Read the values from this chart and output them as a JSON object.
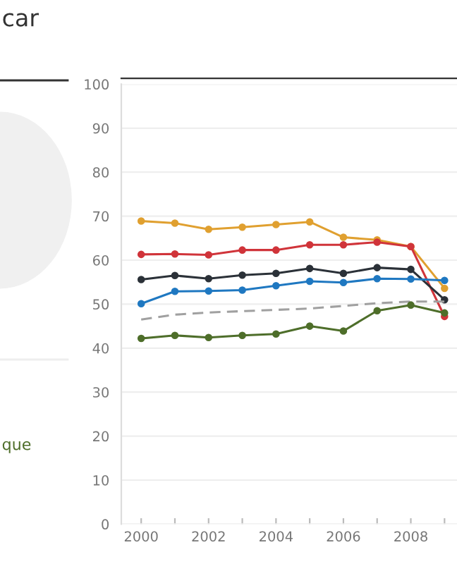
{
  "chart_data": {
    "type": "line",
    "title": "car",
    "x": [
      2000,
      2001,
      2002,
      2003,
      2004,
      2005,
      2006,
      2007,
      2008,
      2009
    ],
    "series": [
      {
        "color": "#e0a030",
        "marker": "circle",
        "values": [
          68.9,
          68.4,
          67.0,
          67.5,
          68.1,
          68.7,
          65.2,
          64.6,
          63.1,
          53.6
        ]
      },
      {
        "color": "#d0343a",
        "marker": "circle",
        "values": [
          61.3,
          61.4,
          61.2,
          62.3,
          62.3,
          63.5,
          63.5,
          64.1,
          63.1,
          47.2
        ]
      },
      {
        "color": "#2b3138",
        "marker": "circle",
        "values": [
          55.6,
          56.5,
          55.8,
          56.6,
          57.0,
          58.1,
          57.0,
          58.3,
          57.9,
          51.0
        ]
      },
      {
        "color": "#1f78c1",
        "marker": "circle",
        "values": [
          50.1,
          52.9,
          53.0,
          53.2,
          54.2,
          55.2,
          54.9,
          55.8,
          55.7,
          55.4
        ]
      },
      {
        "color": "#a0a0a0",
        "marker": "none",
        "line_style": "dashed",
        "values": [
          46.5,
          47.6,
          48.1,
          48.4,
          48.7,
          49.0,
          49.6,
          50.2,
          50.6,
          50.6
        ]
      },
      {
        "name": "que",
        "color": "#4e6e2a",
        "marker": "circle",
        "values": [
          42.2,
          42.9,
          42.4,
          42.9,
          43.2,
          45.0,
          43.9,
          48.5,
          49.8,
          48.0
        ]
      }
    ],
    "xlim": [
      1999.41,
      2009.37
    ],
    "xticks": [
      2000,
      {
        "value": 2001,
        "label": null
      },
      2002,
      {
        "value": 2003,
        "label": null
      },
      2004,
      {
        "value": 2005,
        "label": null
      },
      2006,
      {
        "value": 2007,
        "label": null
      },
      2008,
      {
        "value": 2009,
        "label": null
      }
    ],
    "ylim": [
      0,
      100
    ],
    "yticks": [
      0,
      10,
      20,
      30,
      40,
      50,
      60,
      70,
      80,
      90,
      100
    ],
    "grid": "y",
    "legend": "left"
  }
}
